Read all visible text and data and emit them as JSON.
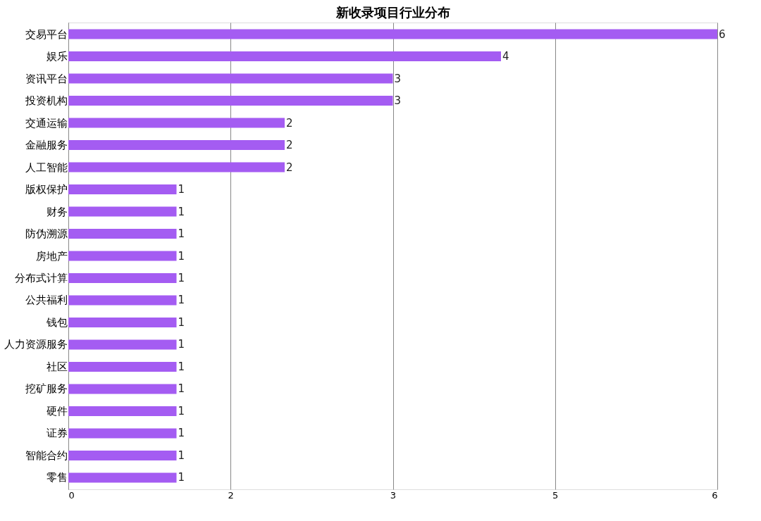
{
  "chart_data": {
    "type": "bar",
    "orientation": "horizontal",
    "title": "新收录项目行业分布",
    "categories": [
      "交易平台",
      "娱乐",
      "资讯平台",
      "投资机构",
      "交通运输",
      "金融服务",
      "人工智能",
      "版权保护",
      "财务",
      "防伪溯源",
      "房地产",
      "分布式计算",
      "公共福利",
      "钱包",
      "人力资源服务",
      "社区",
      "挖矿服务",
      "硬件",
      "证券",
      "智能合约",
      "零售"
    ],
    "values": [
      6,
      4,
      3,
      3,
      2,
      2,
      2,
      1,
      1,
      1,
      1,
      1,
      1,
      1,
      1,
      1,
      1,
      1,
      1,
      1,
      1
    ],
    "color": "#a45cf2",
    "xlim": [
      0,
      6
    ],
    "xticks": [
      0,
      {
        "value": 1.5,
        "label": "2"
      },
      3,
      {
        "value": 4.5,
        "label": "5"
      },
      6
    ],
    "grid": "x",
    "data_labels": true
  }
}
